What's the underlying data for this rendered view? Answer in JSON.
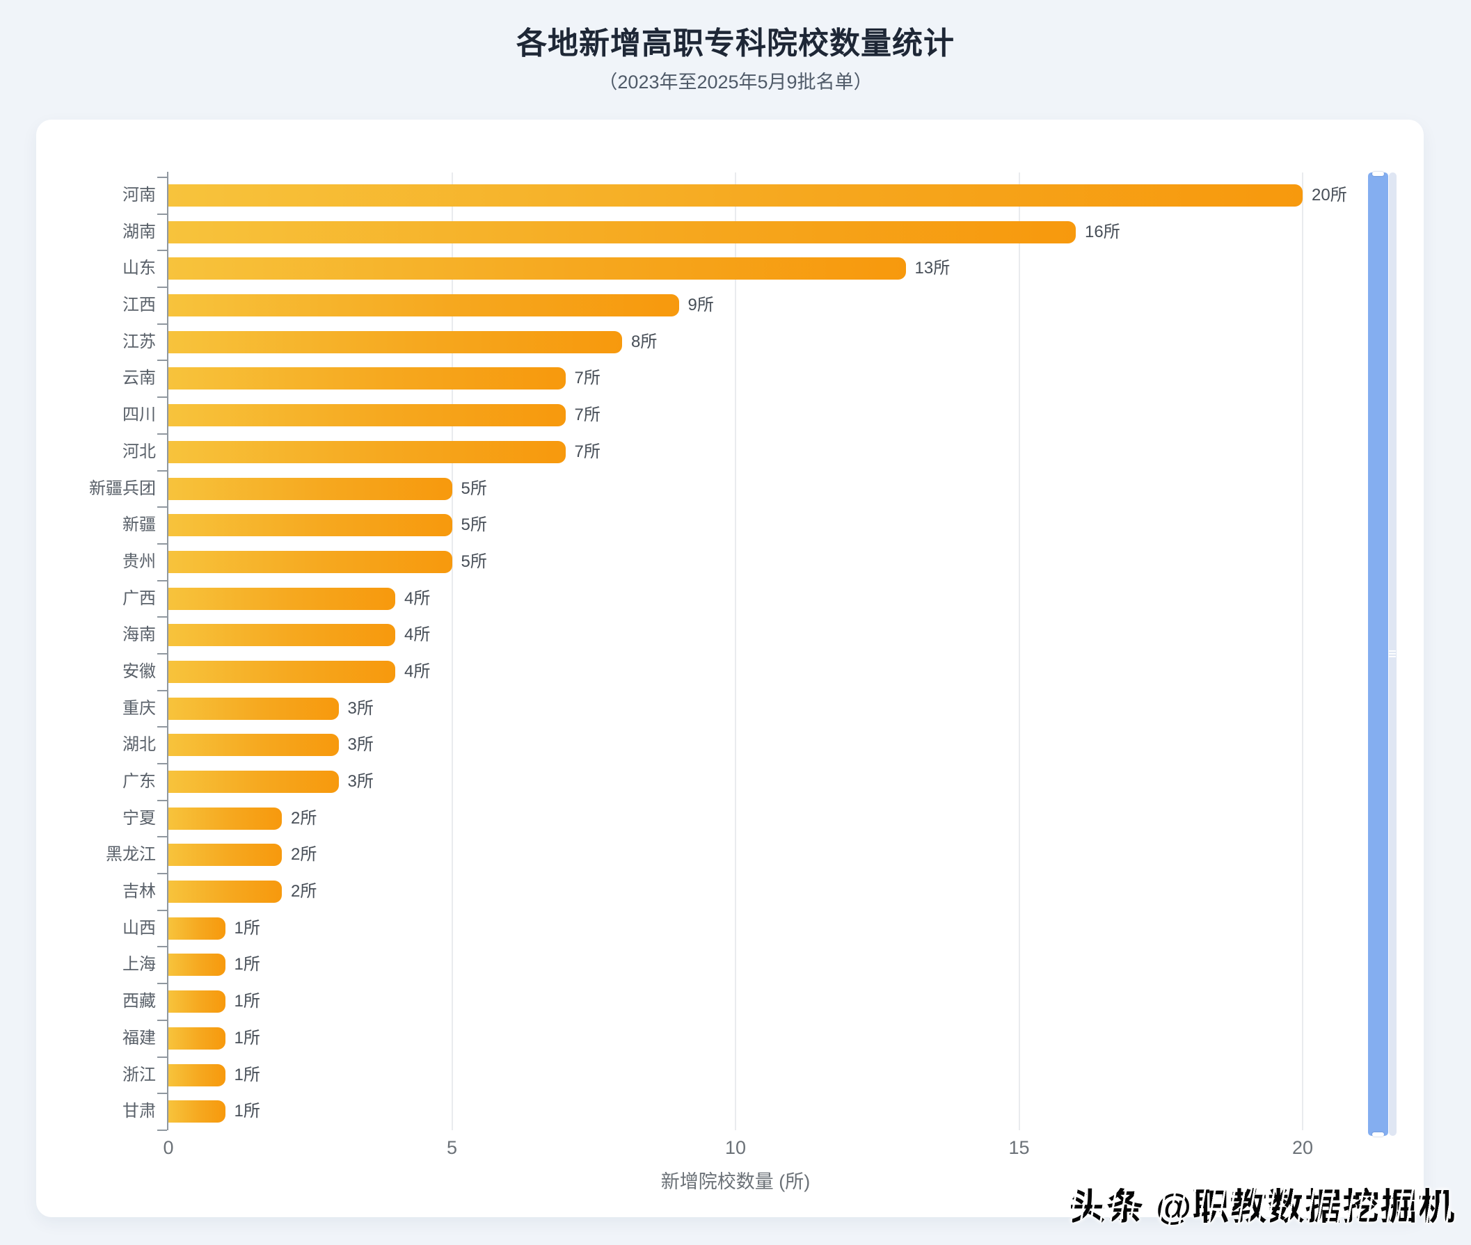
{
  "page": {
    "title": "各地新增高职专科院校数量统计",
    "subtitle": "（2023年至2025年5月9批名单）",
    "watermark": "头条 @职教数据挖掘机"
  },
  "chart_data": {
    "type": "bar",
    "orientation": "horizontal",
    "title": "各地新增高职专科院校数量统计",
    "subtitle": "（2023年至2025年5月9批名单）",
    "categories": [
      "河南",
      "湖南",
      "山东",
      "江西",
      "江苏",
      "云南",
      "四川",
      "河北",
      "新疆兵团",
      "新疆",
      "贵州",
      "广西",
      "海南",
      "安徽",
      "重庆",
      "湖北",
      "广东",
      "宁夏",
      "黑龙江",
      "吉林",
      "山西",
      "上海",
      "西藏",
      "福建",
      "浙江",
      "甘肃"
    ],
    "values": [
      20,
      16,
      13,
      9,
      8,
      7,
      7,
      7,
      5,
      5,
      5,
      4,
      4,
      4,
      3,
      3,
      3,
      2,
      2,
      2,
      1,
      1,
      1,
      1,
      1,
      1
    ],
    "value_labels": [
      "20所",
      "16所",
      "13所",
      "9所",
      "8所",
      "7所",
      "7所",
      "7所",
      "5所",
      "5所",
      "5所",
      "4所",
      "4所",
      "4所",
      "3所",
      "3所",
      "3所",
      "2所",
      "2所",
      "2所",
      "1所",
      "1所",
      "1所",
      "1所",
      "1所",
      "1所"
    ],
    "unit_suffix": "所",
    "xlabel": "新增院校数量 (所)",
    "x_ticks": [
      0,
      5,
      10,
      15,
      20
    ],
    "x_tick_labels": [
      "0",
      "5",
      "10",
      "15",
      "20"
    ],
    "xlim": [
      0,
      20
    ],
    "grid": true,
    "legend": "none",
    "bar_gradient": [
      "#f7c33c",
      "#f7990d"
    ],
    "colors": {
      "background": "#f0f4f9",
      "card": "#ffffff",
      "axis": "#8f979f",
      "gridline": "#e9ebee",
      "slider_fill": "#84aef0",
      "slider_track": "#dfe6f3"
    }
  }
}
